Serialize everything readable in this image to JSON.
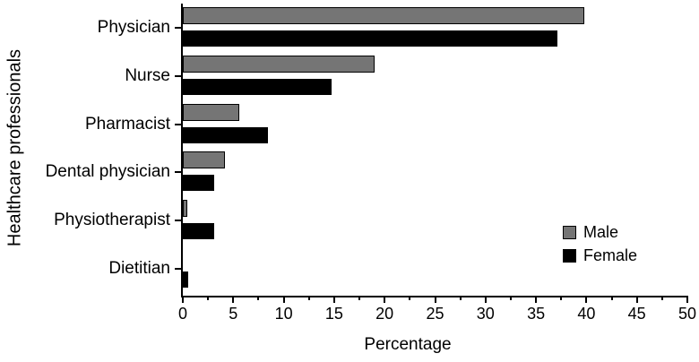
{
  "chart_data": {
    "type": "bar",
    "orientation": "horizontal",
    "title": "",
    "xlabel": "Percentage",
    "ylabel": "Healthcare professionals",
    "categories": [
      "Physician",
      "Nurse",
      "Pharmacist",
      "Dental physician",
      "Physiotherapist",
      "Dietitian"
    ],
    "series": [
      {
        "name": "Male",
        "color": "#757575",
        "values": [
          39.8,
          19.0,
          5.6,
          4.2,
          0.4,
          0.0
        ]
      },
      {
        "name": "Female",
        "color": "#000000",
        "values": [
          37.1,
          14.7,
          8.4,
          3.1,
          3.1,
          0.5
        ]
      }
    ],
    "xlim": [
      0,
      50
    ],
    "x_major_tick_step": 5,
    "x_minor_tick_step": 2.5,
    "x_tick_labels": [
      "0",
      "5",
      "10",
      "15",
      "20",
      "25",
      "30",
      "35",
      "40",
      "45",
      "50"
    ],
    "grid": false,
    "legend_position": "bottom-right"
  },
  "colors": {
    "male_bar": "#757575",
    "female_bar": "#000000",
    "axis": "#000000",
    "background": "#ffffff"
  }
}
